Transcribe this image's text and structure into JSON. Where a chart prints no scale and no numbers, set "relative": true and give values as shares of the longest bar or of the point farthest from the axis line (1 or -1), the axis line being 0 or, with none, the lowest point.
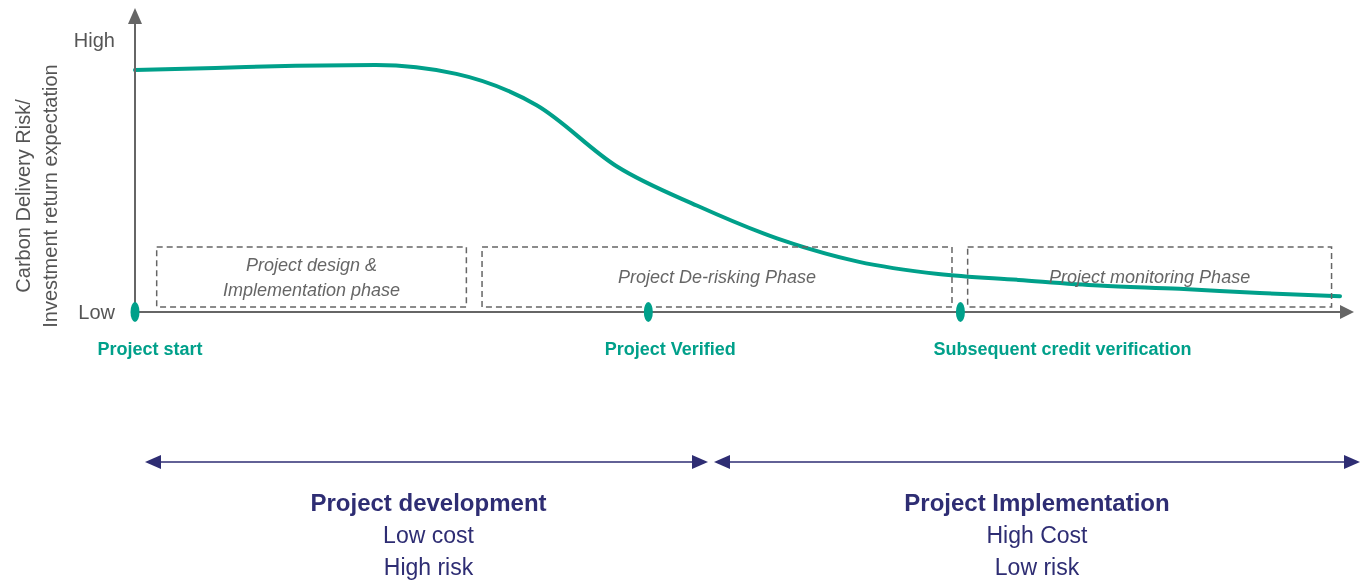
{
  "chart_data": {
    "type": "line",
    "ylabel": "Carbon Delivery Risk/ Investment return expectation",
    "relative": true,
    "categories": [
      null,
      null,
      null,
      null,
      null,
      null,
      null,
      null,
      null,
      null,
      null,
      null,
      null,
      null,
      null,
      null
    ],
    "series": [
      {
        "color": "#00a08a",
        "values": [
          0.98,
          0.988,
          0.997,
          1,
          0.964,
          0.837,
          0.589,
          0.43,
          0.297,
          0.204,
          0.154,
          0.13,
          0.107,
          0.094,
          0.077,
          0.064
        ]
      }
    ],
    "annotations": [
      "High",
      "Low",
      "Project design &\nImplementation phase",
      "Project De-risking Phase",
      "Project monitoring Phase",
      "Project start",
      "Project Verified",
      "Subsequent credit verification",
      "Project development\nLow cost\nHigh risk",
      "Project Implementation\nHigh Cost\nLow risk"
    ],
    "marker": "none",
    "line_style": "solid"
  }
}
